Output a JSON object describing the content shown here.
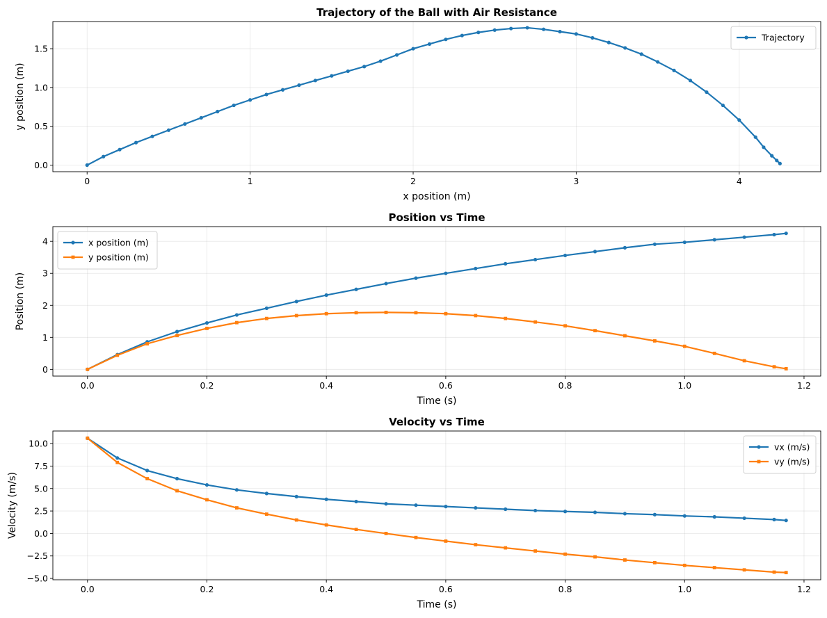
{
  "chart_data": [
    {
      "type": "line",
      "title": "Trajectory of the Ball with Air Resistance",
      "xlabel": "x position (m)",
      "ylabel": "y position (m)",
      "xlim": [
        -0.21,
        4.5
      ],
      "ylim": [
        -0.085,
        1.85
      ],
      "xticks": [
        0,
        1,
        2,
        3,
        4
      ],
      "xtick_labels": [
        "0",
        "1",
        "2",
        "3",
        "4"
      ],
      "yticks": [
        0.0,
        0.5,
        1.0,
        1.5
      ],
      "ytick_labels": [
        "0.0",
        "0.5",
        "1.0",
        "1.5"
      ],
      "grid": true,
      "legend_position": "top-right",
      "series": [
        {
          "name": "Trajectory",
          "color": "#1f77b4",
          "marker": "circle",
          "x": [
            0,
            0.1,
            0.2,
            0.3,
            0.4,
            0.5,
            0.6,
            0.7,
            0.8,
            0.9,
            1.0,
            1.1,
            1.2,
            1.3,
            1.4,
            1.5,
            1.6,
            1.7,
            1.8,
            1.9,
            2.0,
            2.1,
            2.2,
            2.3,
            2.4,
            2.5,
            2.6,
            2.7,
            2.8,
            2.9,
            3.0,
            3.1,
            3.2,
            3.3,
            3.4,
            3.5,
            3.6,
            3.7,
            3.8,
            3.9,
            4.0,
            4.1,
            4.15,
            4.2,
            4.23,
            4.25
          ],
          "y": [
            0.0,
            0.11,
            0.2,
            0.29,
            0.37,
            0.45,
            0.53,
            0.61,
            0.69,
            0.77,
            0.84,
            0.91,
            0.97,
            1.03,
            1.09,
            1.15,
            1.21,
            1.27,
            1.34,
            1.42,
            1.5,
            1.56,
            1.62,
            1.67,
            1.71,
            1.74,
            1.76,
            1.77,
            1.75,
            1.72,
            1.69,
            1.64,
            1.58,
            1.51,
            1.43,
            1.33,
            1.22,
            1.09,
            0.94,
            0.77,
            0.58,
            0.36,
            0.23,
            0.12,
            0.06,
            0.02
          ]
        }
      ]
    },
    {
      "type": "line",
      "title": "Position vs Time",
      "xlabel": "Time (s)",
      "ylabel": "Position (m)",
      "xlim": [
        -0.058,
        1.228
      ],
      "ylim": [
        -0.21,
        4.46
      ],
      "xticks": [
        0.0,
        0.2,
        0.4,
        0.6,
        0.8,
        1.0,
        1.2
      ],
      "xtick_labels": [
        "0.0",
        "0.2",
        "0.4",
        "0.6",
        "0.8",
        "1.0",
        "1.2"
      ],
      "yticks": [
        0,
        1,
        2,
        3,
        4
      ],
      "ytick_labels": [
        "0",
        "1",
        "2",
        "3",
        "4"
      ],
      "grid": true,
      "legend_position": "top-left",
      "series": [
        {
          "name": "x position (m)",
          "color": "#1f77b4",
          "marker": "circle",
          "x": [
            0.0,
            0.05,
            0.1,
            0.15,
            0.2,
            0.25,
            0.3,
            0.35,
            0.4,
            0.45,
            0.5,
            0.55,
            0.6,
            0.65,
            0.7,
            0.75,
            0.8,
            0.85,
            0.9,
            0.95,
            1.0,
            1.05,
            1.1,
            1.15,
            1.17
          ],
          "y": [
            0.0,
            0.46,
            0.86,
            1.18,
            1.45,
            1.7,
            1.91,
            2.12,
            2.32,
            2.5,
            2.68,
            2.85,
            3.0,
            3.15,
            3.3,
            3.43,
            3.56,
            3.68,
            3.8,
            3.91,
            3.97,
            4.05,
            4.13,
            4.21,
            4.25
          ]
        },
        {
          "name": "y position (m)",
          "color": "#ff7f0e",
          "marker": "square",
          "x": [
            0.0,
            0.05,
            0.1,
            0.15,
            0.2,
            0.25,
            0.3,
            0.35,
            0.4,
            0.45,
            0.5,
            0.55,
            0.6,
            0.65,
            0.7,
            0.75,
            0.8,
            0.85,
            0.9,
            0.95,
            1.0,
            1.05,
            1.1,
            1.15,
            1.17
          ],
          "y": [
            0.0,
            0.44,
            0.8,
            1.06,
            1.28,
            1.46,
            1.59,
            1.68,
            1.74,
            1.77,
            1.78,
            1.77,
            1.74,
            1.68,
            1.59,
            1.48,
            1.36,
            1.21,
            1.05,
            0.89,
            0.72,
            0.5,
            0.27,
            0.08,
            0.02
          ]
        }
      ]
    },
    {
      "type": "line",
      "title": "Velocity vs Time",
      "xlabel": "Time (s)",
      "ylabel": "Velocity (m/s)",
      "xlim": [
        -0.058,
        1.228
      ],
      "ylim": [
        -5.15,
        11.4
      ],
      "xticks": [
        0.0,
        0.2,
        0.4,
        0.6,
        0.8,
        1.0,
        1.2
      ],
      "xtick_labels": [
        "0.0",
        "0.2",
        "0.4",
        "0.6",
        "0.8",
        "1.0",
        "1.2"
      ],
      "yticks": [
        -5.0,
        -2.5,
        0.0,
        2.5,
        5.0,
        7.5,
        10.0
      ],
      "ytick_labels": [
        "−5.0",
        "−2.5",
        "0.0",
        "2.5",
        "5.0",
        "7.5",
        "10.0"
      ],
      "grid": true,
      "legend_position": "top-right",
      "series": [
        {
          "name": "vx (m/s)",
          "color": "#1f77b4",
          "marker": "circle",
          "x": [
            0.0,
            0.05,
            0.1,
            0.15,
            0.2,
            0.25,
            0.3,
            0.35,
            0.4,
            0.45,
            0.5,
            0.55,
            0.6,
            0.65,
            0.7,
            0.75,
            0.8,
            0.85,
            0.9,
            0.95,
            1.0,
            1.05,
            1.1,
            1.15,
            1.17
          ],
          "y": [
            10.6,
            8.4,
            7.0,
            6.1,
            5.4,
            4.85,
            4.45,
            4.1,
            3.8,
            3.55,
            3.3,
            3.15,
            3.0,
            2.85,
            2.7,
            2.55,
            2.45,
            2.35,
            2.2,
            2.1,
            1.95,
            1.85,
            1.7,
            1.55,
            1.45
          ]
        },
        {
          "name": "vy (m/s)",
          "color": "#ff7f0e",
          "marker": "square",
          "x": [
            0.0,
            0.05,
            0.1,
            0.15,
            0.2,
            0.25,
            0.3,
            0.35,
            0.4,
            0.45,
            0.5,
            0.55,
            0.6,
            0.65,
            0.7,
            0.75,
            0.8,
            0.85,
            0.9,
            0.95,
            1.0,
            1.05,
            1.1,
            1.15,
            1.17
          ],
          "y": [
            10.6,
            7.9,
            6.1,
            4.75,
            3.75,
            2.85,
            2.15,
            1.5,
            0.95,
            0.45,
            0.0,
            -0.45,
            -0.85,
            -1.25,
            -1.6,
            -1.95,
            -2.3,
            -2.6,
            -2.95,
            -3.25,
            -3.55,
            -3.8,
            -4.05,
            -4.3,
            -4.35
          ]
        }
      ]
    }
  ]
}
